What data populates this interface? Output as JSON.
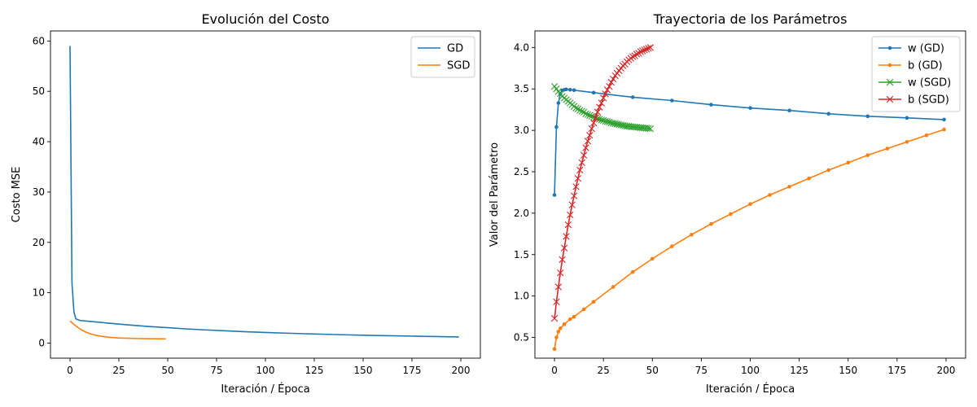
{
  "chart_data": [
    {
      "type": "line",
      "title": "Evolución del Costo",
      "xlabel": "Iteración / Época",
      "ylabel": "Costo MSE",
      "xlim": [
        -10,
        210
      ],
      "ylim": [
        -3,
        62
      ],
      "xticks": [
        0,
        25,
        50,
        75,
        100,
        125,
        150,
        175,
        200
      ],
      "yticks": [
        0,
        10,
        20,
        30,
        40,
        50,
        60
      ],
      "legend_position": "top-right",
      "grid": false,
      "series": [
        {
          "name": "GD",
          "color": "#1f77b4",
          "marker": "none",
          "x": [
            0,
            1,
            2,
            3,
            5,
            10,
            20,
            30,
            40,
            50,
            60,
            70,
            80,
            90,
            100,
            110,
            120,
            130,
            140,
            150,
            160,
            170,
            180,
            190,
            199
          ],
          "y": [
            59.0,
            12.0,
            6.2,
            4.8,
            4.5,
            4.3,
            3.95,
            3.6,
            3.3,
            3.05,
            2.8,
            2.6,
            2.42,
            2.25,
            2.1,
            1.97,
            1.85,
            1.75,
            1.65,
            1.56,
            1.48,
            1.41,
            1.34,
            1.27,
            1.22
          ]
        },
        {
          "name": "SGD",
          "color": "#ff7f0e",
          "marker": "none",
          "x": [
            0,
            2,
            4,
            6,
            8,
            10,
            12,
            15,
            20,
            25,
            30,
            35,
            40,
            45,
            49
          ],
          "y": [
            4.4,
            3.7,
            3.1,
            2.6,
            2.2,
            1.9,
            1.65,
            1.4,
            1.15,
            1.02,
            0.95,
            0.9,
            0.87,
            0.85,
            0.84
          ]
        }
      ]
    },
    {
      "type": "line",
      "title": "Trayectoria de los Parámetros",
      "xlabel": "Iteración / Época",
      "ylabel": "Valor del Parámetro",
      "xlim": [
        -10,
        210
      ],
      "ylim": [
        0.25,
        4.2
      ],
      "xticks": [
        0,
        25,
        50,
        75,
        100,
        125,
        150,
        175,
        200
      ],
      "yticks": [
        0.5,
        1.0,
        1.5,
        2.0,
        2.5,
        3.0,
        3.5,
        4.0
      ],
      "legend_position": "top-right",
      "grid": false,
      "series": [
        {
          "name": "w (GD)",
          "color": "#1f77b4",
          "marker": "dot",
          "x": [
            0,
            1,
            2,
            3,
            4,
            5,
            6,
            8,
            10,
            20,
            40,
            60,
            80,
            100,
            120,
            140,
            160,
            180,
            199
          ],
          "y": [
            2.22,
            3.04,
            3.33,
            3.44,
            3.48,
            3.49,
            3.495,
            3.49,
            3.485,
            3.455,
            3.4,
            3.36,
            3.31,
            3.27,
            3.24,
            3.2,
            3.17,
            3.15,
            3.13
          ]
        },
        {
          "name": "b (GD)",
          "color": "#ff7f0e",
          "marker": "dot",
          "x": [
            0,
            1,
            2,
            3,
            5,
            8,
            10,
            15,
            20,
            30,
            40,
            50,
            60,
            70,
            80,
            90,
            100,
            110,
            120,
            130,
            140,
            150,
            160,
            170,
            180,
            190,
            199
          ],
          "y": [
            0.36,
            0.5,
            0.57,
            0.61,
            0.66,
            0.72,
            0.75,
            0.84,
            0.93,
            1.11,
            1.29,
            1.45,
            1.6,
            1.74,
            1.87,
            1.99,
            2.11,
            2.22,
            2.32,
            2.42,
            2.52,
            2.61,
            2.7,
            2.78,
            2.86,
            2.94,
            3.01
          ]
        },
        {
          "name": "w (SGD)",
          "color": "#2ca02c",
          "marker": "x",
          "x": [
            0,
            1,
            2,
            3,
            4,
            5,
            6,
            7,
            8,
            9,
            10,
            11,
            12,
            13,
            14,
            15,
            16,
            17,
            18,
            19,
            20,
            21,
            22,
            23,
            24,
            25,
            26,
            27,
            28,
            29,
            30,
            31,
            32,
            33,
            34,
            35,
            36,
            37,
            38,
            39,
            40,
            41,
            42,
            43,
            44,
            45,
            46,
            47,
            48,
            49
          ],
          "y": [
            3.53,
            3.5,
            3.47,
            3.44,
            3.41,
            3.39,
            3.37,
            3.35,
            3.33,
            3.31,
            3.29,
            3.27,
            3.26,
            3.24,
            3.23,
            3.22,
            3.2,
            3.19,
            3.18,
            3.17,
            3.16,
            3.15,
            3.14,
            3.135,
            3.125,
            3.12,
            3.11,
            3.105,
            3.1,
            3.09,
            3.085,
            3.08,
            3.075,
            3.07,
            3.065,
            3.06,
            3.055,
            3.05,
            3.048,
            3.045,
            3.042,
            3.04,
            3.037,
            3.035,
            3.032,
            3.03,
            3.028,
            3.026,
            3.024,
            3.02
          ]
        },
        {
          "name": "b (SGD)",
          "color": "#d62728",
          "marker": "x",
          "x": [
            0,
            1,
            2,
            3,
            4,
            5,
            6,
            7,
            8,
            9,
            10,
            11,
            12,
            13,
            14,
            15,
            16,
            17,
            18,
            19,
            20,
            21,
            22,
            23,
            24,
            25,
            26,
            27,
            28,
            29,
            30,
            31,
            32,
            33,
            34,
            35,
            36,
            37,
            38,
            39,
            40,
            41,
            42,
            43,
            44,
            45,
            46,
            47,
            48,
            49
          ],
          "y": [
            0.73,
            0.93,
            1.11,
            1.28,
            1.44,
            1.58,
            1.72,
            1.86,
            1.98,
            2.1,
            2.21,
            2.32,
            2.42,
            2.52,
            2.61,
            2.7,
            2.79,
            2.87,
            2.94,
            3.02,
            3.09,
            3.15,
            3.22,
            3.28,
            3.33,
            3.39,
            3.44,
            3.49,
            3.53,
            3.58,
            3.62,
            3.66,
            3.69,
            3.72,
            3.75,
            3.78,
            3.8,
            3.83,
            3.85,
            3.87,
            3.89,
            3.9,
            3.92,
            3.93,
            3.95,
            3.96,
            3.97,
            3.98,
            3.99,
            4.0
          ]
        }
      ]
    }
  ]
}
